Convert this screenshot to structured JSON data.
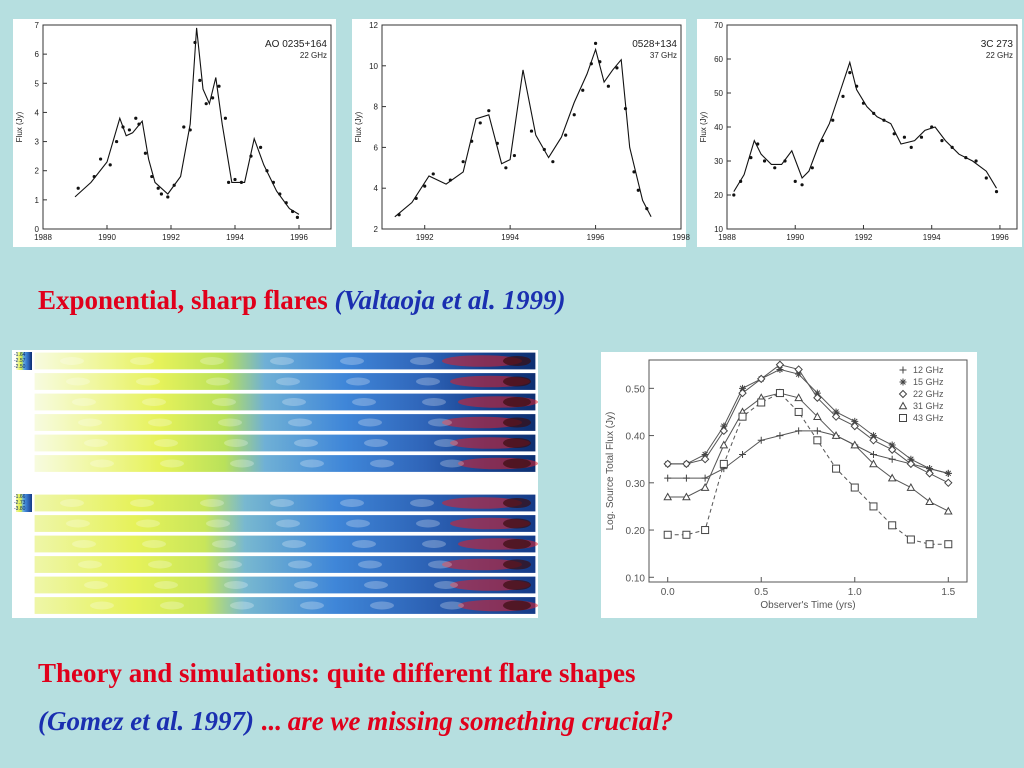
{
  "caption_top": {
    "text": "Exponential, sharp flares",
    "cite": "(Valtaoja et al. 1999)"
  },
  "caption_bottom": {
    "line1": "Theory and simulations: quite different flare shapes",
    "cite": "(Gomez et al. 1997)",
    "ellipsis": " ... ",
    "question": "are we missing something crucial?"
  },
  "sim_scales": {
    "top": [
      "-1.64",
      "-2.57",
      "-2.50"
    ],
    "bottom": [
      "-1.66",
      "-2.73",
      "-3.80"
    ]
  },
  "colors": {
    "flux_points": "#111111",
    "sim_yellow": "#e6f25a",
    "sim_blue": "#3f86d8",
    "sim_red": "#e0202a"
  },
  "chart_data": [
    {
      "type": "scatter",
      "title": "AO 0235+164",
      "subtitle": "22 GHz",
      "ylabel": "Flux (Jy)",
      "xlabel": "",
      "xlim": [
        1988,
        1997
      ],
      "ylim": [
        0,
        7
      ],
      "xticks": [
        1988,
        1990,
        1992,
        1994,
        1996
      ],
      "yticks": [
        0,
        1,
        2,
        3,
        4,
        5,
        6,
        7
      ],
      "model_curve": {
        "x": [
          1989.0,
          1989.5,
          1990.0,
          1990.4,
          1990.6,
          1990.8,
          1991.1,
          1991.3,
          1991.5,
          1991.9,
          1992.3,
          1992.6,
          1992.8,
          1993.0,
          1993.2,
          1993.4,
          1993.6,
          1993.9,
          1994.3,
          1994.6,
          1994.9,
          1995.3,
          1995.7,
          1996.0
        ],
        "y": [
          1.1,
          1.6,
          2.3,
          3.8,
          3.2,
          3.3,
          3.7,
          2.4,
          1.6,
          1.2,
          1.8,
          3.6,
          6.9,
          4.8,
          4.3,
          5.2,
          3.6,
          1.6,
          1.6,
          3.1,
          2.2,
          1.3,
          0.7,
          0.5
        ]
      },
      "points": {
        "x": [
          1989.1,
          1989.6,
          1989.8,
          1990.1,
          1990.3,
          1990.5,
          1990.7,
          1990.9,
          1991.0,
          1991.2,
          1991.4,
          1991.6,
          1991.7,
          1991.9,
          1992.1,
          1992.4,
          1992.6,
          1992.75,
          1992.9,
          1993.1,
          1993.3,
          1993.5,
          1993.7,
          1993.8,
          1994.0,
          1994.2,
          1994.5,
          1994.8,
          1995.0,
          1995.2,
          1995.4,
          1995.6,
          1995.8,
          1995.95
        ],
        "y": [
          1.4,
          1.8,
          2.4,
          2.2,
          3.0,
          3.5,
          3.4,
          3.8,
          3.6,
          2.6,
          1.8,
          1.4,
          1.2,
          1.1,
          1.5,
          3.5,
          3.4,
          6.4,
          5.1,
          4.3,
          4.5,
          4.9,
          3.8,
          1.6,
          1.7,
          1.6,
          2.5,
          2.8,
          2.0,
          1.6,
          1.2,
          0.9,
          0.6,
          0.4
        ]
      }
    },
    {
      "type": "scatter",
      "title": "0528+134",
      "subtitle": "37 GHz",
      "ylabel": "Flux (Jy)",
      "xlabel": "",
      "xlim": [
        1991,
        1998
      ],
      "ylim": [
        2,
        12
      ],
      "xticks": [
        1992,
        1994,
        1996,
        1998
      ],
      "yticks": [
        2,
        4,
        6,
        8,
        10,
        12
      ],
      "model_curve": {
        "x": [
          1991.3,
          1991.7,
          1992.1,
          1992.5,
          1992.9,
          1993.2,
          1993.5,
          1993.8,
          1994.0,
          1994.3,
          1994.6,
          1994.9,
          1995.2,
          1995.5,
          1995.8,
          1996.0,
          1996.2,
          1996.4,
          1996.6,
          1996.8,
          1997.1,
          1997.3
        ],
        "y": [
          2.6,
          3.3,
          4.6,
          4.2,
          4.8,
          7.4,
          7.6,
          5.2,
          5.4,
          9.8,
          6.6,
          5.5,
          6.5,
          8.2,
          9.6,
          10.8,
          9.2,
          9.8,
          10.3,
          6.0,
          3.4,
          2.6
        ]
      },
      "points": {
        "x": [
          1991.4,
          1991.8,
          1992.0,
          1992.2,
          1992.6,
          1992.9,
          1993.1,
          1993.3,
          1993.5,
          1993.7,
          1993.9,
          1994.1,
          1994.5,
          1994.8,
          1995.0,
          1995.3,
          1995.5,
          1995.7,
          1995.9,
          1996.0,
          1996.1,
          1996.3,
          1996.5,
          1996.7,
          1996.9,
          1997.0,
          1997.2
        ],
        "y": [
          2.7,
          3.5,
          4.1,
          4.7,
          4.4,
          5.3,
          6.3,
          7.2,
          7.8,
          6.2,
          5.0,
          5.6,
          6.8,
          5.9,
          5.3,
          6.6,
          7.6,
          8.8,
          10.1,
          11.1,
          10.2,
          9.0,
          9.9,
          7.9,
          4.8,
          3.9,
          3.0
        ]
      }
    },
    {
      "type": "scatter",
      "title": "3C 273",
      "subtitle": "22 GHz",
      "ylabel": "Flux (Jy)",
      "xlabel": "",
      "xlim": [
        1988,
        1996.5
      ],
      "ylim": [
        10,
        70
      ],
      "xticks": [
        1988,
        1990,
        1992,
        1994,
        1996
      ],
      "yticks": [
        10,
        20,
        30,
        40,
        50,
        60,
        70
      ],
      "model_curve": {
        "x": [
          1988.2,
          1988.5,
          1988.8,
          1989.0,
          1989.3,
          1989.6,
          1989.9,
          1990.2,
          1990.4,
          1990.7,
          1991.0,
          1991.3,
          1991.6,
          1991.8,
          1992.1,
          1992.4,
          1992.8,
          1993.1,
          1993.5,
          1993.8,
          1994.1,
          1994.4,
          1994.8,
          1995.2,
          1995.6,
          1995.9
        ],
        "y": [
          21,
          26,
          36,
          32,
          29,
          29,
          33,
          25,
          27,
          35,
          41,
          50,
          59,
          51,
          46,
          43,
          41,
          35,
          36,
          39,
          40,
          36,
          32,
          30,
          27,
          22
        ]
      },
      "points": {
        "x": [
          1988.2,
          1988.4,
          1988.7,
          1988.9,
          1989.1,
          1989.4,
          1989.7,
          1990.0,
          1990.2,
          1990.5,
          1990.8,
          1991.1,
          1991.4,
          1991.6,
          1991.8,
          1992.0,
          1992.3,
          1992.6,
          1992.9,
          1993.2,
          1993.4,
          1993.7,
          1994.0,
          1994.3,
          1994.6,
          1995.0,
          1995.3,
          1995.6,
          1995.9
        ],
        "y": [
          20,
          24,
          31,
          35,
          30,
          28,
          30,
          24,
          23,
          28,
          36,
          42,
          49,
          56,
          52,
          47,
          44,
          42,
          38,
          37,
          34,
          37,
          40,
          36,
          34,
          31,
          30,
          25,
          21
        ]
      }
    },
    {
      "type": "line",
      "title": "",
      "xlabel": "Observer's Time (yrs)",
      "ylabel": "Log. Source Total Flux (Jy)",
      "xlim": [
        -0.1,
        1.6
      ],
      "ylim": [
        0.09,
        0.56
      ],
      "xticks": [
        0.0,
        0.5,
        1.0,
        1.5
      ],
      "xticklabels": [
        "0.0",
        "0.5",
        "1.0",
        "1.5"
      ],
      "yticks": [
        0.1,
        0.2,
        0.3,
        0.4,
        0.5
      ],
      "yticklabels": [
        "0.10",
        "0.20",
        "0.30",
        "0.40",
        "0.50"
      ],
      "legend_position": "top-right",
      "x": [
        0.0,
        0.1,
        0.2,
        0.3,
        0.4,
        0.5,
        0.6,
        0.7,
        0.8,
        0.9,
        1.0,
        1.1,
        1.2,
        1.3,
        1.4,
        1.5
      ],
      "series": [
        {
          "name": "12 GHz",
          "marker": "plus",
          "dashed": false,
          "values": [
            0.31,
            0.31,
            0.31,
            0.33,
            0.36,
            0.39,
            0.4,
            0.41,
            0.41,
            0.4,
            0.38,
            0.36,
            0.35,
            0.34,
            0.33,
            0.32
          ]
        },
        {
          "name": "15 GHz",
          "marker": "asterisk",
          "dashed": false,
          "values": [
            0.34,
            0.34,
            0.36,
            0.42,
            0.5,
            0.52,
            0.54,
            0.53,
            0.49,
            0.45,
            0.43,
            0.4,
            0.38,
            0.35,
            0.33,
            0.32
          ]
        },
        {
          "name": "22 GHz",
          "marker": "diamond",
          "dashed": false,
          "values": [
            0.34,
            0.34,
            0.35,
            0.41,
            0.49,
            0.52,
            0.55,
            0.54,
            0.48,
            0.44,
            0.42,
            0.39,
            0.37,
            0.34,
            0.32,
            0.3
          ]
        },
        {
          "name": "31 GHz",
          "marker": "triangle",
          "dashed": false,
          "values": [
            0.27,
            0.27,
            0.29,
            0.38,
            0.45,
            0.48,
            0.49,
            0.48,
            0.44,
            0.4,
            0.38,
            0.34,
            0.31,
            0.29,
            0.26,
            0.24
          ]
        },
        {
          "name": "43 GHz",
          "marker": "square",
          "dashed": true,
          "values": [
            0.19,
            0.19,
            0.2,
            0.34,
            0.44,
            0.47,
            0.49,
            0.45,
            0.39,
            0.33,
            0.29,
            0.25,
            0.21,
            0.18,
            0.17,
            0.17
          ]
        }
      ]
    }
  ]
}
